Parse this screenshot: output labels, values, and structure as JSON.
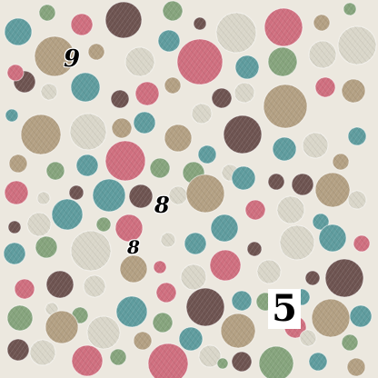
{
  "puzzle": {
    "numbers": [
      "9",
      "8",
      "8",
      "5"
    ]
  },
  "colors": {
    "background": "#ece8df",
    "teal": "#5f9c9e",
    "pink": "#cf6f7f",
    "tan": "#b3a083",
    "brown": "#6e5451",
    "sage": "#86a47d",
    "light": "#d9d6c9",
    "digit": "#000000"
  }
}
